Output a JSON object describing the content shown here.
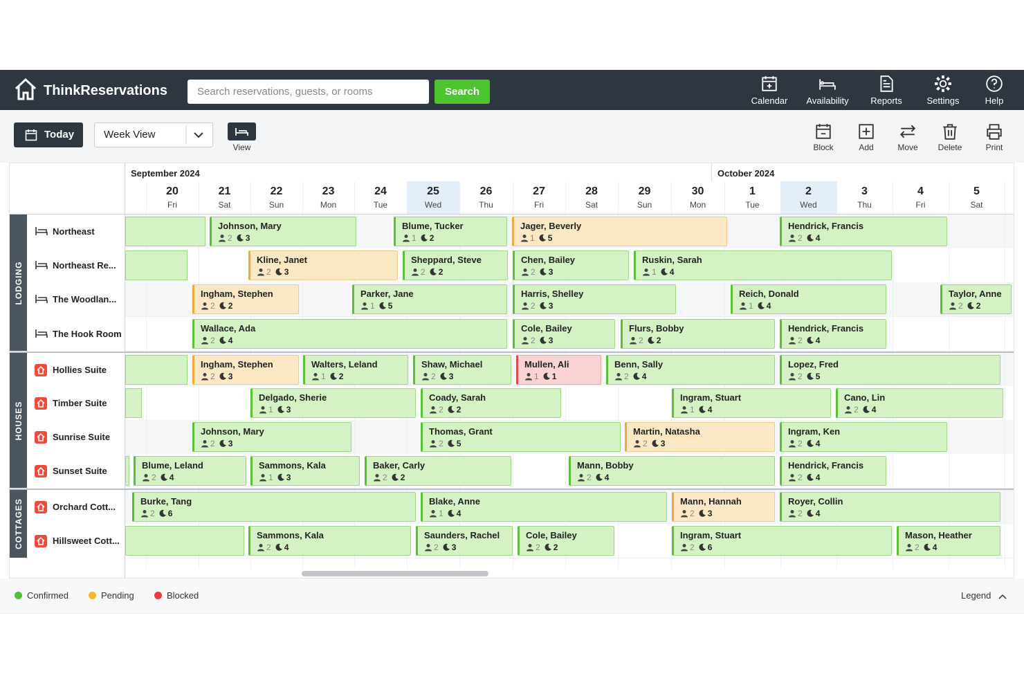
{
  "header": {
    "brand": "ThinkReservations",
    "search_placeholder": "Search reservations, guests, or rooms",
    "search_button": "Search",
    "nav": [
      "Calendar",
      "Availability",
      "Reports",
      "Settings",
      "Help"
    ]
  },
  "toolbar": {
    "today": "Today",
    "view_select": "Week View",
    "view_label": "View",
    "actions": [
      "Block",
      "Add",
      "Move",
      "Delete",
      "Print"
    ]
  },
  "calendar": {
    "months": [
      "September 2024",
      "October 2024"
    ],
    "days": [
      {
        "day": "20",
        "weekday": "Fri"
      },
      {
        "day": "21",
        "weekday": "Sat"
      },
      {
        "day": "22",
        "weekday": "Sun"
      },
      {
        "day": "23",
        "weekday": "Mon"
      },
      {
        "day": "24",
        "weekday": "Tue"
      },
      {
        "day": "25",
        "weekday": "Wed"
      },
      {
        "day": "26",
        "weekday": "Thu"
      },
      {
        "day": "27",
        "weekday": "Fri"
      },
      {
        "day": "28",
        "weekday": "Sat"
      },
      {
        "day": "29",
        "weekday": "Sun"
      },
      {
        "day": "30",
        "weekday": "Mon"
      },
      {
        "day": "1",
        "weekday": "Tue"
      },
      {
        "day": "2",
        "weekday": "Wed"
      },
      {
        "day": "3",
        "weekday": "Thu"
      },
      {
        "day": "4",
        "weekday": "Fri"
      },
      {
        "day": "5",
        "weekday": "Sat"
      }
    ],
    "groups": [
      {
        "name": "LODGING",
        "rooms": [
          {
            "name": "Northeast",
            "bookings": [
              {
                "guest": "Johnson, Mary",
                "guests": "2",
                "nights": "3",
                "status": "confirmed"
              },
              {
                "guest": "Blume, Tucker",
                "guests": "1",
                "nights": "2",
                "status": "confirmed"
              },
              {
                "guest": "Jager, Beverly",
                "guests": "1",
                "nights": "5",
                "status": "pending"
              },
              {
                "guest": "Hendrick, Francis",
                "guests": "2",
                "nights": "4",
                "status": "confirmed"
              }
            ]
          },
          {
            "name": "Northeast Re...",
            "bookings": [
              {
                "guest": "Kline, Janet",
                "guests": "2",
                "nights": "3",
                "status": "pending"
              },
              {
                "guest": "Sheppard, Steve",
                "guests": "2",
                "nights": "2",
                "status": "confirmed"
              },
              {
                "guest": "Chen, Bailey",
                "guests": "2",
                "nights": "3",
                "status": "confirmed"
              },
              {
                "guest": "Ruskin, Sarah",
                "guests": "1",
                "nights": "4",
                "status": "confirmed"
              }
            ]
          },
          {
            "name": "The Woodlan...",
            "bookings": [
              {
                "guest": "Ingham, Stephen",
                "guests": "2",
                "nights": "2",
                "status": "pending"
              },
              {
                "guest": "Parker, Jane",
                "guests": "1",
                "nights": "5",
                "status": "confirmed"
              },
              {
                "guest": "Harris, Shelley",
                "guests": "2",
                "nights": "3",
                "status": "confirmed"
              },
              {
                "guest": "Reich, Donald",
                "guests": "1",
                "nights": "4",
                "status": "confirmed"
              },
              {
                "guest": "Taylor, Anne",
                "guests": "2",
                "nights": "2",
                "status": "confirmed"
              }
            ]
          },
          {
            "name": "The Hook Room",
            "bookings": [
              {
                "guest": "Wallace, Ada",
                "guests": "2",
                "nights": "4",
                "status": "confirmed"
              },
              {
                "guest": "Cole, Bailey",
                "guests": "2",
                "nights": "3",
                "status": "confirmed"
              },
              {
                "guest": "Flurs, Bobby",
                "guests": "2",
                "nights": "2",
                "status": "confirmed"
              },
              {
                "guest": "Hendrick, Francis",
                "guests": "2",
                "nights": "4",
                "status": "confirmed"
              }
            ]
          }
        ]
      },
      {
        "name": "HOUSES",
        "rooms": [
          {
            "name": "Hollies Suite",
            "bookings": [
              {
                "guest": "Ingham, Stephen",
                "guests": "2",
                "nights": "3",
                "status": "pending"
              },
              {
                "guest": "Walters, Leland",
                "guests": "1",
                "nights": "2",
                "status": "confirmed"
              },
              {
                "guest": "Shaw, Michael",
                "guests": "2",
                "nights": "3",
                "status": "confirmed"
              },
              {
                "guest": "Mullen, Ali",
                "guests": "1",
                "nights": "1",
                "status": "blocked"
              },
              {
                "guest": "Benn, Sally",
                "guests": "2",
                "nights": "4",
                "status": "confirmed"
              },
              {
                "guest": "Lopez, Fred",
                "guests": "2",
                "nights": "5",
                "status": "confirmed"
              }
            ]
          },
          {
            "name": "Timber Suite",
            "bookings": [
              {
                "guest": "Delgado, Sherie",
                "guests": "1",
                "nights": "3",
                "status": "confirmed"
              },
              {
                "guest": "Coady, Sarah",
                "guests": "2",
                "nights": "2",
                "status": "confirmed"
              },
              {
                "guest": "Ingram, Stuart",
                "guests": "1",
                "nights": "4",
                "status": "confirmed"
              },
              {
                "guest": "Cano, Lin",
                "guests": "2",
                "nights": "4",
                "status": "confirmed"
              }
            ]
          },
          {
            "name": "Sunrise Suite",
            "bookings": [
              {
                "guest": "Johnson, Mary",
                "guests": "2",
                "nights": "3",
                "status": "confirmed"
              },
              {
                "guest": "Thomas, Grant",
                "guests": "2",
                "nights": "5",
                "status": "confirmed"
              },
              {
                "guest": "Martin, Natasha",
                "guests": "2",
                "nights": "3",
                "status": "pending"
              },
              {
                "guest": "Ingram, Ken",
                "guests": "2",
                "nights": "4",
                "status": "confirmed"
              }
            ]
          },
          {
            "name": "Sunset Suite",
            "bookings": [
              {
                "guest": "Blume, Leland",
                "guests": "2",
                "nights": "4",
                "status": "confirmed"
              },
              {
                "guest": "Sammons, Kala",
                "guests": "1",
                "nights": "3",
                "status": "confirmed"
              },
              {
                "guest": "Baker, Carly",
                "guests": "2",
                "nights": "2",
                "status": "confirmed"
              },
              {
                "guest": "Mann, Bobby",
                "guests": "2",
                "nights": "4",
                "status": "confirmed"
              },
              {
                "guest": "Hendrick, Francis",
                "guests": "2",
                "nights": "4",
                "status": "confirmed"
              }
            ]
          }
        ]
      },
      {
        "name": "COTTAGES",
        "rooms": [
          {
            "name": "Orchard Cott...",
            "bookings": [
              {
                "guest": "Burke, Tang",
                "guests": "2",
                "nights": "6",
                "status": "confirmed"
              },
              {
                "guest": "Blake, Anne",
                "guests": "1",
                "nights": "4",
                "status": "confirmed"
              },
              {
                "guest": "Mann, Hannah",
                "guests": "2",
                "nights": "3",
                "status": "pending"
              },
              {
                "guest": "Royer, Collin",
                "guests": "2",
                "nights": "4",
                "status": "confirmed"
              }
            ]
          },
          {
            "name": "Hillsweet Cott...",
            "bookings": [
              {
                "guest": "Sammons, Kala",
                "guests": "2",
                "nights": "4",
                "status": "confirmed"
              },
              {
                "guest": "Saunders, Rachel",
                "guests": "2",
                "nights": "3",
                "status": "confirmed"
              },
              {
                "guest": "Cole, Bailey",
                "guests": "2",
                "nights": "2",
                "status": "confirmed"
              },
              {
                "guest": "Ingram, Stuart",
                "guests": "2",
                "nights": "6",
                "status": "confirmed"
              },
              {
                "guest": "Mason, Heather",
                "guests": "2",
                "nights": "4",
                "status": "confirmed"
              }
            ]
          }
        ]
      }
    ]
  },
  "legend": {
    "items": [
      {
        "label": "Confirmed",
        "color": "#4cc52e"
      },
      {
        "label": "Pending",
        "color": "#f5b82e"
      },
      {
        "label": "Blocked",
        "color": "#ee3b3b"
      }
    ],
    "toggle": "Legend"
  }
}
